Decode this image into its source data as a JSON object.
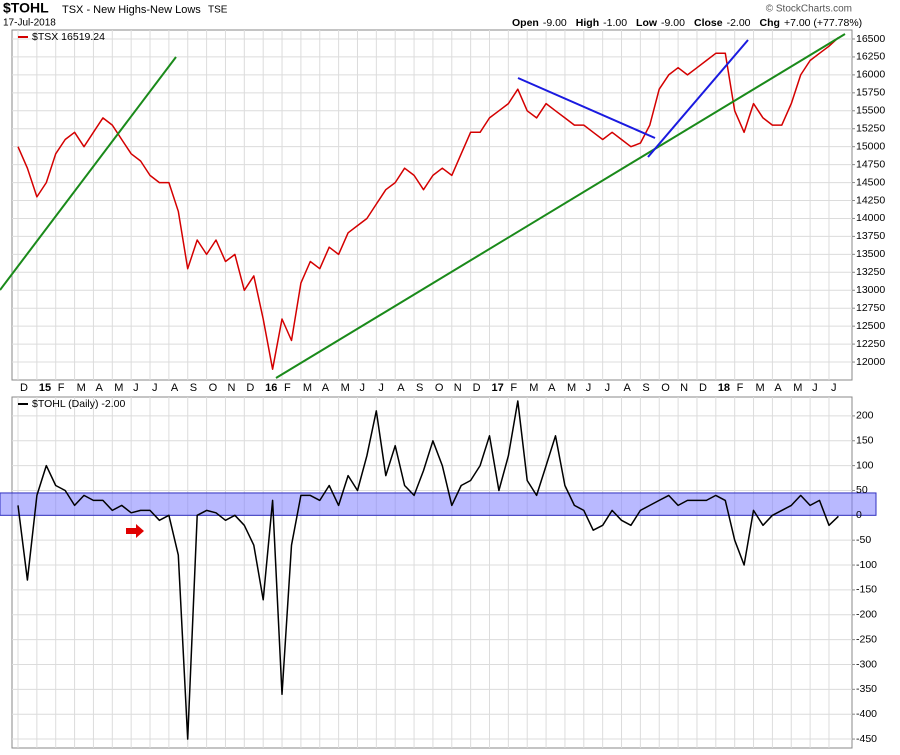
{
  "header": {
    "symbol": "$TOHL",
    "name": "TSX - New Highs-New Lows",
    "exchange": "TSE",
    "date": "17-Jul-2018",
    "quote": [
      {
        "label": "Open",
        "value": "-9.00"
      },
      {
        "label": "High",
        "value": "-1.00"
      },
      {
        "label": "Low",
        "value": "-9.00"
      },
      {
        "label": "Close",
        "value": "-2.00"
      },
      {
        "label": "Chg",
        "value": "+7.00 (+77.78%)"
      }
    ],
    "credit": "© StockCharts.com"
  },
  "chart_data": [
    {
      "type": "line",
      "categories": [
        "D",
        null,
        "15",
        null,
        "F",
        null,
        "M",
        null,
        "A",
        null,
        "M",
        null,
        "J",
        null,
        "J",
        null,
        "A",
        null,
        "S",
        null,
        "O",
        null,
        "N",
        null,
        "D",
        null,
        "16",
        null,
        "F",
        null,
        "M",
        null,
        "A",
        null,
        "M",
        null,
        "J",
        null,
        "J",
        null,
        "A",
        null,
        "S",
        null,
        "O",
        null,
        "N",
        null,
        "D",
        null,
        "17",
        null,
        "F",
        null,
        "M",
        null,
        "A",
        null,
        "M",
        null,
        "J",
        null,
        "J",
        null,
        "A",
        null,
        "S",
        null,
        "O",
        null,
        "N",
        null,
        "D",
        null,
        "18",
        null,
        "F",
        null,
        "M",
        null,
        "A",
        null,
        "M",
        null,
        "J",
        null,
        "J",
        null
      ],
      "series": [
        {
          "name": "$TSX 16519.24",
          "color": "#d40000",
          "values": [
            15000,
            14700,
            14300,
            14500,
            14900,
            15100,
            15200,
            15000,
            15200,
            15400,
            15300,
            15100,
            14900,
            14800,
            14600,
            14500,
            14500,
            14100,
            13300,
            13700,
            13500,
            13700,
            13400,
            13500,
            13000,
            13200,
            12600,
            11900,
            12600,
            12300,
            13100,
            13400,
            13300,
            13600,
            13500,
            13800,
            13900,
            14000,
            14200,
            14400,
            14500,
            14700,
            14600,
            14400,
            14600,
            14700,
            14600,
            14900,
            15200,
            15200,
            15400,
            15500,
            15600,
            15800,
            15500,
            15400,
            15600,
            15500,
            15400,
            15300,
            15300,
            15200,
            15100,
            15200,
            15100,
            15000,
            15050,
            15300,
            15800,
            16000,
            16100,
            16000,
            16100,
            16200,
            16300,
            16300,
            15500,
            15200,
            15600,
            15400,
            15300,
            15300,
            15600,
            16000,
            16200,
            16300,
            16400,
            16519
          ]
        }
      ],
      "ylim": [
        11750,
        16625
      ],
      "yticks": [
        12000,
        12250,
        12500,
        12750,
        13000,
        13250,
        13500,
        13750,
        14000,
        14250,
        14500,
        14750,
        15000,
        15250,
        15500,
        15750,
        16000,
        16250,
        16500
      ],
      "grid": true
    },
    {
      "type": "line",
      "series": [
        {
          "name": "$TOHL (Daily) -2.00",
          "color": "#000000",
          "values": [
            20,
            -130,
            40,
            100,
            60,
            50,
            20,
            40,
            30,
            30,
            10,
            20,
            5,
            10,
            10,
            -10,
            0,
            -80,
            -450,
            0,
            10,
            5,
            -10,
            0,
            -20,
            -60,
            -170,
            30,
            -360,
            -60,
            40,
            40,
            30,
            60,
            20,
            80,
            50,
            120,
            210,
            80,
            140,
            60,
            40,
            90,
            150,
            100,
            20,
            60,
            70,
            100,
            160,
            50,
            120,
            230,
            70,
            40,
            100,
            160,
            60,
            20,
            10,
            -30,
            -20,
            10,
            -10,
            -20,
            10,
            20,
            30,
            40,
            20,
            30,
            30,
            30,
            40,
            30,
            -50,
            -100,
            10,
            -20,
            0,
            10,
            20,
            40,
            20,
            30,
            -20,
            -2
          ]
        }
      ],
      "ylim": [
        -468,
        238
      ],
      "yticks": [
        -450,
        -400,
        -350,
        -300,
        -250,
        -200,
        -150,
        -100,
        -50,
        0,
        50,
        100,
        150,
        200
      ],
      "grid": true
    }
  ]
}
